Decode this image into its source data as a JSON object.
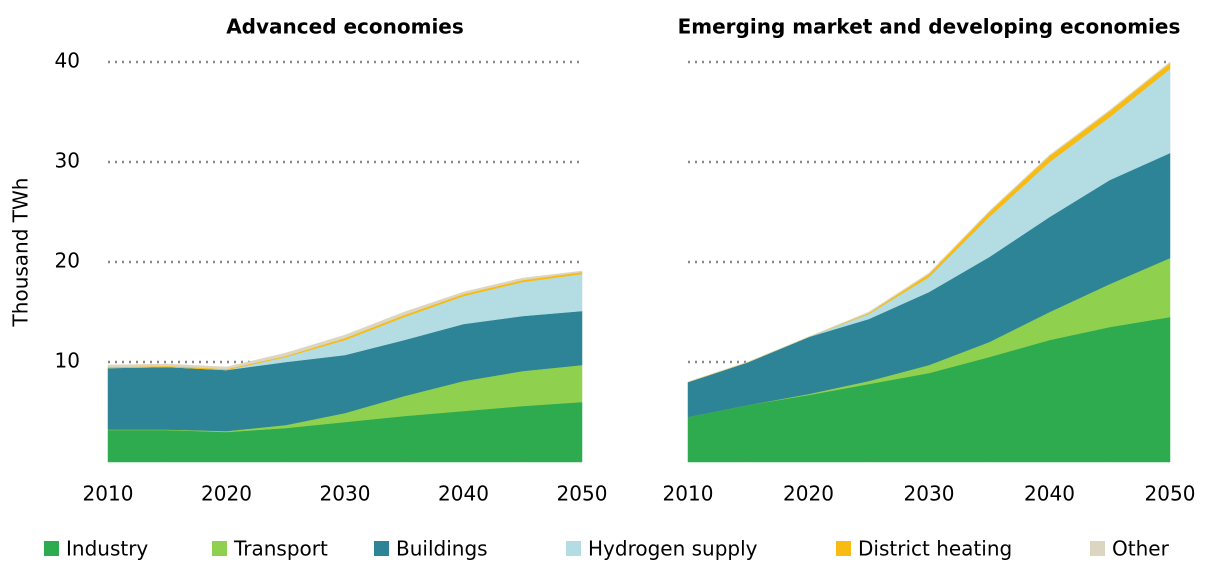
{
  "chart_data": [
    {
      "type": "stacked-area",
      "title": "Advanced economies",
      "y_label": "Thousand TWh",
      "x": [
        2010,
        2015,
        2020,
        2025,
        2030,
        2035,
        2040,
        2045,
        2050
      ],
      "xlim": [
        2010,
        2050
      ],
      "xticks": [
        2010,
        2020,
        2030,
        2040,
        2050
      ],
      "ylim": [
        0,
        40
      ],
      "yticks": [
        10,
        20,
        30,
        40
      ],
      "grid": true,
      "series": [
        {
          "name": "Industry",
          "color": "#2eab4e",
          "values": [
            3.2,
            3.2,
            3.0,
            3.4,
            4.0,
            4.6,
            5.1,
            5.6,
            6.0
          ]
        },
        {
          "name": "Transport",
          "color": "#8fd14f",
          "values": [
            0.05,
            0.05,
            0.1,
            0.3,
            0.9,
            2.0,
            3.0,
            3.5,
            3.7
          ]
        },
        {
          "name": "Buildings",
          "color": "#2e8497",
          "values": [
            6.15,
            6.25,
            6.1,
            6.3,
            5.8,
            5.6,
            5.7,
            5.5,
            5.4
          ]
        },
        {
          "name": "Hydrogen supply",
          "color": "#b3dde3",
          "values": [
            0,
            0,
            0,
            0.5,
            1.5,
            2.3,
            2.8,
            3.4,
            3.7
          ]
        },
        {
          "name": "District heating",
          "color": "#f8bb12",
          "values": [
            0.1,
            0.1,
            0.1,
            0.1,
            0.2,
            0.2,
            0.2,
            0.2,
            0.2
          ]
        },
        {
          "name": "Other",
          "color": "#dcd6c0",
          "values": [
            0.2,
            0.2,
            0.2,
            0.3,
            0.3,
            0.3,
            0.2,
            0.2,
            0.1
          ]
        }
      ]
    },
    {
      "type": "stacked-area",
      "title": "Emerging market and developing economies",
      "x": [
        2010,
        2015,
        2020,
        2025,
        2030,
        2035,
        2040,
        2045,
        2050
      ],
      "xlim": [
        2010,
        2050
      ],
      "xticks": [
        2010,
        2020,
        2030,
        2040,
        2050
      ],
      "ylim": [
        0,
        40
      ],
      "yticks": [
        10,
        20,
        30,
        40
      ],
      "grid": true,
      "series": [
        {
          "color": "#2eab4e",
          "values": [
            4.5,
            5.7,
            6.7,
            7.8,
            8.9,
            10.5,
            12.2,
            13.5,
            14.5
          ]
        },
        {
          "color": "#8fd14f",
          "values": [
            0,
            0,
            0.1,
            0.3,
            0.8,
            1.5,
            2.8,
            4.3,
            5.9
          ]
        },
        {
          "color": "#2e8497",
          "values": [
            3.5,
            4.3,
            5.7,
            6.2,
            7.3,
            8.5,
            9.5,
            10.4,
            10.5
          ]
        },
        {
          "color": "#b3dde3",
          "values": [
            0,
            0,
            0,
            0.5,
            1.5,
            4.0,
            5.5,
            6.3,
            8.4
          ]
        },
        {
          "color": "#f8bb12",
          "values": [
            0,
            0,
            0,
            0.1,
            0.3,
            0.5,
            0.6,
            0.6,
            0.6
          ]
        },
        {
          "color": "#dcd6c0",
          "values": [
            0,
            0,
            0,
            0.1,
            0.1,
            0.1,
            0.1,
            0.1,
            0.1
          ]
        }
      ]
    }
  ]
}
